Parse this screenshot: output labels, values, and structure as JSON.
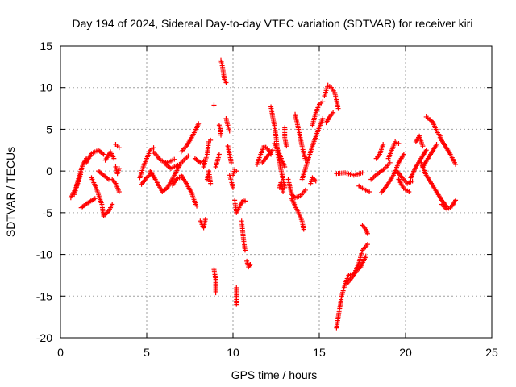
{
  "chart_data": {
    "type": "scatter",
    "title": "Day 194 of 2024, Sidereal Day-to-day VTEC variation (SDTVAR) for receiver kiri",
    "xlabel": "GPS time / hours",
    "ylabel": "SDTVAR / TECUs",
    "xlim": [
      0,
      25
    ],
    "ylim": [
      -20,
      15
    ],
    "xticks": [
      0,
      5,
      10,
      15,
      20,
      25
    ],
    "xtick_labels": [
      "0",
      "5",
      "10",
      "15",
      "20",
      "25"
    ],
    "yticks": [
      -20,
      -15,
      -10,
      -5,
      0,
      5,
      10,
      15
    ],
    "ytick_labels": [
      "-20",
      "-15",
      "-10",
      "-5",
      "0",
      "5",
      "10",
      "15"
    ],
    "grid": true,
    "marker": "+",
    "color": "#ff0000",
    "segments": [
      [
        [
          0.6,
          -3.2
        ],
        [
          0.9,
          -2.0
        ],
        [
          1.1,
          -0.5
        ],
        [
          1.3,
          0.8
        ],
        [
          1.5,
          1.5
        ]
      ],
      [
        [
          0.8,
          -2.8
        ],
        [
          1.0,
          -1.5
        ],
        [
          1.2,
          -0.2
        ]
      ],
      [
        [
          1.2,
          -4.4
        ],
        [
          1.6,
          -3.8
        ],
        [
          2.0,
          -3.3
        ]
      ],
      [
        [
          1.5,
          1.0
        ],
        [
          1.8,
          2.1
        ],
        [
          2.2,
          2.5
        ],
        [
          2.5,
          2.0
        ]
      ],
      [
        [
          1.8,
          -0.8
        ],
        [
          2.1,
          -2.2
        ],
        [
          2.4,
          -4.0
        ],
        [
          2.5,
          -5.4
        ],
        [
          2.8,
          -4.8
        ],
        [
          3.0,
          -4.0
        ]
      ],
      [
        [
          2.2,
          0.0
        ],
        [
          2.5,
          -0.5
        ],
        [
          2.8,
          -1.0
        ]
      ],
      [
        [
          2.6,
          1.3
        ],
        [
          2.9,
          2.3
        ],
        [
          3.1,
          1.5
        ]
      ],
      [
        [
          3.0,
          -1.0
        ],
        [
          3.2,
          -1.5
        ],
        [
          3.4,
          -2.5
        ]
      ],
      [
        [
          3.2,
          0.5
        ],
        [
          3.3,
          -0.3
        ],
        [
          3.4,
          0.3
        ]
      ],
      [
        [
          3.2,
          3.2
        ],
        [
          3.3,
          3.0
        ],
        [
          3.4,
          2.8
        ]
      ],
      [
        [
          4.6,
          -0.8
        ],
        [
          4.8,
          0.5
        ],
        [
          5.0,
          1.5
        ],
        [
          5.2,
          2.5
        ],
        [
          5.4,
          2.8
        ]
      ],
      [
        [
          4.7,
          -1.6
        ],
        [
          5.0,
          -0.8
        ],
        [
          5.3,
          -0.2
        ]
      ],
      [
        [
          5.2,
          0.0
        ],
        [
          5.5,
          -1.0
        ],
        [
          5.9,
          -2.5
        ],
        [
          6.2,
          -2.0
        ],
        [
          6.6,
          -0.5
        ],
        [
          7.0,
          1.0
        ],
        [
          7.4,
          1.8
        ]
      ],
      [
        [
          5.4,
          2.3
        ],
        [
          5.8,
          1.3
        ],
        [
          6.2,
          1.0
        ],
        [
          6.6,
          1.4
        ]
      ],
      [
        [
          6.0,
          1.0
        ],
        [
          6.4,
          0.3
        ],
        [
          6.9,
          0.8
        ]
      ],
      [
        [
          6.5,
          -1.7
        ],
        [
          6.7,
          -1.0
        ],
        [
          6.9,
          -0.8
        ]
      ],
      [
        [
          7.0,
          -0.5
        ],
        [
          7.3,
          -1.5
        ],
        [
          7.6,
          -2.6
        ],
        [
          7.8,
          -3.8
        ],
        [
          7.9,
          -4.2
        ]
      ],
      [
        [
          7.0,
          2.3
        ],
        [
          7.3,
          3.0
        ],
        [
          7.6,
          4.0
        ],
        [
          7.9,
          5.2
        ],
        [
          8.0,
          5.7
        ]
      ],
      [
        [
          7.8,
          1.5
        ],
        [
          8.1,
          1.0
        ],
        [
          8.4,
          1.3
        ]
      ],
      [
        [
          8.1,
          -6.0
        ],
        [
          8.3,
          -6.8
        ],
        [
          8.4,
          -5.8
        ]
      ],
      [
        [
          8.3,
          0.5
        ],
        [
          8.5,
          2.0
        ],
        [
          8.6,
          3.5
        ],
        [
          8.7,
          3.7
        ]
      ],
      [
        [
          8.5,
          -1.0
        ],
        [
          8.6,
          0.0
        ],
        [
          8.7,
          -1.5
        ]
      ],
      [
        [
          8.9,
          7.9
        ]
      ],
      [
        [
          8.9,
          -11.8
        ],
        [
          9.0,
          -13.0
        ],
        [
          9.0,
          -14.6
        ]
      ],
      [
        [
          9.0,
          0.5
        ],
        [
          9.1,
          1.2
        ],
        [
          9.2,
          2.0
        ]
      ],
      [
        [
          9.2,
          5.5
        ],
        [
          9.3,
          4.7
        ],
        [
          9.3,
          4.3
        ]
      ],
      [
        [
          9.3,
          13.3
        ],
        [
          9.4,
          12.4
        ],
        [
          9.5,
          11.0
        ],
        [
          9.6,
          10.6
        ]
      ],
      [
        [
          9.6,
          6.3
        ],
        [
          9.7,
          5.5
        ],
        [
          9.8,
          4.8
        ]
      ],
      [
        [
          9.7,
          3.0
        ],
        [
          9.8,
          2.0
        ],
        [
          9.9,
          1.0
        ]
      ],
      [
        [
          9.8,
          -0.5
        ],
        [
          9.9,
          -1.2
        ],
        [
          10.0,
          -2.0
        ]
      ],
      [
        [
          10.0,
          -0.5
        ],
        [
          10.1,
          0.2
        ],
        [
          10.2,
          0.0
        ]
      ],
      [
        [
          10.1,
          -3.5
        ],
        [
          10.2,
          -5.0
        ],
        [
          10.4,
          -4.2
        ],
        [
          10.6,
          -3.5
        ],
        [
          10.7,
          -3.6
        ]
      ],
      [
        [
          10.2,
          -14.0
        ],
        [
          10.2,
          -15.0
        ],
        [
          10.2,
          -16.0
        ]
      ],
      [
        [
          10.5,
          -6.0
        ],
        [
          10.6,
          -8.0
        ],
        [
          10.7,
          -9.5
        ]
      ],
      [
        [
          10.8,
          -10.8
        ],
        [
          10.9,
          -11.5
        ],
        [
          11.0,
          -11.2
        ]
      ],
      [
        [
          11.4,
          0.8
        ],
        [
          11.6,
          2.0
        ],
        [
          11.8,
          3.0
        ],
        [
          12.0,
          2.7
        ],
        [
          12.2,
          2.0
        ]
      ],
      [
        [
          11.7,
          1.0
        ],
        [
          12.0,
          1.8
        ],
        [
          12.3,
          2.5
        ]
      ],
      [
        [
          12.2,
          7.7
        ],
        [
          12.3,
          6.5
        ],
        [
          12.4,
          5.5
        ],
        [
          12.5,
          4.0
        ],
        [
          12.6,
          2.0
        ],
        [
          12.8,
          0.0
        ],
        [
          13.0,
          -2.0
        ]
      ],
      [
        [
          12.4,
          3.3
        ],
        [
          12.6,
          2.5
        ],
        [
          12.8,
          1.5
        ],
        [
          13.0,
          0.5
        ]
      ],
      [
        [
          12.7,
          -2.0
        ],
        [
          12.8,
          -1.2
        ],
        [
          12.9,
          -2.5
        ]
      ],
      [
        [
          13.0,
          5.2
        ],
        [
          13.0,
          4.0
        ],
        [
          13.1,
          3.0
        ]
      ],
      [
        [
          13.2,
          -1.0
        ],
        [
          13.4,
          -2.8
        ],
        [
          13.6,
          -3.2
        ],
        [
          13.9,
          -3.0
        ],
        [
          14.2,
          -2.3
        ]
      ],
      [
        [
          13.4,
          -3.3
        ],
        [
          13.6,
          -4.2
        ],
        [
          13.8,
          -5.0
        ],
        [
          14.0,
          -6.0
        ],
        [
          14.1,
          -7.0
        ]
      ],
      [
        [
          13.6,
          6.8
        ],
        [
          13.8,
          5.0
        ],
        [
          14.0,
          3.0
        ],
        [
          14.2,
          1.3
        ]
      ],
      [
        [
          14.0,
          -1.0
        ],
        [
          14.3,
          1.0
        ],
        [
          14.6,
          3.0
        ],
        [
          14.9,
          4.7
        ],
        [
          15.2,
          6.3
        ]
      ],
      [
        [
          14.5,
          -1.5
        ],
        [
          14.6,
          -0.8
        ],
        [
          14.8,
          -1.2
        ]
      ],
      [
        [
          14.6,
          5.5
        ],
        [
          14.8,
          7.0
        ],
        [
          15.0,
          8.0
        ],
        [
          15.2,
          8.3
        ]
      ],
      [
        [
          15.3,
          9.0
        ],
        [
          15.5,
          10.3
        ],
        [
          15.7,
          10.0
        ],
        [
          15.9,
          9.4
        ],
        [
          16.1,
          7.5
        ]
      ],
      [
        [
          15.4,
          5.8
        ],
        [
          15.6,
          6.5
        ],
        [
          15.8,
          7.0
        ]
      ],
      [
        [
          16.0,
          -0.3
        ],
        [
          16.5,
          -0.2
        ],
        [
          17.0,
          -0.5
        ],
        [
          17.5,
          -0.2
        ]
      ],
      [
        [
          16.0,
          -18.8
        ],
        [
          16.1,
          -17.5
        ],
        [
          16.3,
          -15.0
        ],
        [
          16.5,
          -13.5
        ],
        [
          16.7,
          -12.5
        ],
        [
          17.0,
          -12.3
        ],
        [
          17.4,
          -11.5
        ],
        [
          17.7,
          -10.2
        ]
      ],
      [
        [
          16.6,
          -13.5
        ],
        [
          17.0,
          -12.5
        ],
        [
          17.3,
          -11.0
        ],
        [
          17.5,
          -9.5
        ],
        [
          17.8,
          -8.8
        ]
      ],
      [
        [
          17.5,
          -6.5
        ],
        [
          17.7,
          -7.0
        ],
        [
          17.8,
          -7.5
        ]
      ],
      [
        [
          17.3,
          -1.8
        ],
        [
          17.6,
          -2.2
        ],
        [
          17.9,
          -2.5
        ]
      ],
      [
        [
          18.0,
          -1.0
        ],
        [
          18.4,
          -0.3
        ],
        [
          18.8,
          0.3
        ],
        [
          19.1,
          1.0
        ]
      ],
      [
        [
          18.3,
          1.5
        ],
        [
          18.5,
          2.0
        ],
        [
          18.7,
          3.2
        ]
      ],
      [
        [
          18.6,
          -2.6
        ],
        [
          18.9,
          -1.8
        ],
        [
          19.3,
          -0.5
        ],
        [
          19.6,
          1.0
        ],
        [
          19.9,
          2.0
        ]
      ],
      [
        [
          19.0,
          1.5
        ],
        [
          19.2,
          2.5
        ],
        [
          19.4,
          3.5
        ],
        [
          19.6,
          3.3
        ]
      ],
      [
        [
          19.5,
          0.0
        ],
        [
          19.8,
          -0.8
        ],
        [
          20.1,
          -1.5
        ],
        [
          20.4,
          -1.2
        ]
      ],
      [
        [
          19.6,
          -1.0
        ],
        [
          19.9,
          -2.1
        ],
        [
          20.2,
          -2.5
        ]
      ],
      [
        [
          20.3,
          -0.8
        ],
        [
          20.6,
          0.5
        ],
        [
          20.9,
          1.5
        ],
        [
          21.2,
          2.5
        ]
      ],
      [
        [
          20.6,
          3.5
        ],
        [
          20.8,
          4.2
        ],
        [
          21.0,
          3.0
        ]
      ],
      [
        [
          20.9,
          1.0
        ],
        [
          21.2,
          -0.5
        ],
        [
          21.5,
          -1.5
        ],
        [
          21.8,
          -2.5
        ],
        [
          22.1,
          -3.5
        ],
        [
          22.4,
          -4.3
        ]
      ],
      [
        [
          21.0,
          0.5
        ],
        [
          21.3,
          1.5
        ],
        [
          21.6,
          2.5
        ],
        [
          21.8,
          3.2
        ]
      ],
      [
        [
          21.2,
          6.5
        ],
        [
          21.4,
          6.2
        ],
        [
          21.6,
          5.8
        ],
        [
          21.8,
          4.8
        ],
        [
          22.0,
          4.2
        ]
      ],
      [
        [
          22.0,
          4.0
        ],
        [
          22.3,
          3.0
        ],
        [
          22.6,
          2.0
        ],
        [
          22.9,
          0.8
        ]
      ],
      [
        [
          22.1,
          -4.0
        ],
        [
          22.4,
          -4.6
        ],
        [
          22.7,
          -4.2
        ],
        [
          22.9,
          -3.5
        ]
      ]
    ]
  }
}
